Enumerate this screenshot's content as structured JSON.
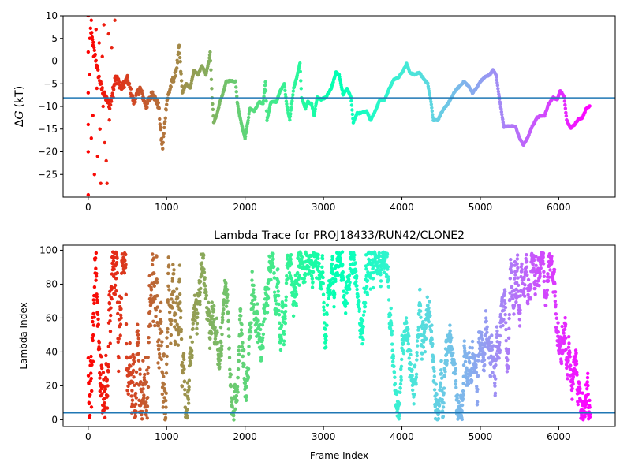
{
  "chart_data": [
    {
      "type": "scatter",
      "title": "",
      "xlabel": "",
      "ylabel": "ΔG (kT)",
      "ylabel_parts": {
        "symbol": "Δ",
        "var": "G",
        "unit": "(kT)"
      },
      "xlim": [
        -320,
        6720
      ],
      "ylim": [
        -30,
        10
      ],
      "xticks": [
        "0",
        "1000",
        "2000",
        "3000",
        "4000",
        "5000",
        "6000"
      ],
      "xtick_values": [
        0,
        1000,
        2000,
        3000,
        4000,
        5000,
        6000
      ],
      "yticks": [
        "−25",
        "−20",
        "−15",
        "−10",
        "−5",
        "0",
        "5",
        "10"
      ],
      "ytick_values": [
        -25,
        -20,
        -15,
        -10,
        -5,
        0,
        5,
        10
      ],
      "hline": -8.1,
      "hline_color": "#1f77b4",
      "colormap": "rainbow_r",
      "x_max": 6400,
      "trace": [
        [
          30,
          7
        ],
        [
          60,
          4
        ],
        [
          90,
          1
        ],
        [
          130,
          -3
        ],
        [
          170,
          -6
        ],
        [
          220,
          -8
        ],
        [
          280,
          -10
        ],
        [
          350,
          -3
        ],
        [
          420,
          -6
        ],
        [
          500,
          -4
        ],
        [
          580,
          -9
        ],
        [
          660,
          -6
        ],
        [
          740,
          -10
        ],
        [
          820,
          -7
        ],
        [
          900,
          -10
        ],
        [
          930,
          -17
        ],
        [
          950,
          -19
        ],
        [
          1000,
          -9
        ],
        [
          1060,
          -5
        ],
        [
          1110,
          -3
        ],
        [
          1140,
          0
        ],
        [
          1160,
          3
        ],
        [
          1200,
          -7
        ],
        [
          1250,
          -5
        ],
        [
          1300,
          -6
        ],
        [
          1350,
          -2
        ],
        [
          1400,
          -3
        ],
        [
          1450,
          -1
        ],
        [
          1500,
          -3
        ],
        [
          1540,
          0
        ],
        [
          1555,
          2
        ],
        [
          1580,
          -8
        ],
        [
          1600,
          -13.5
        ],
        [
          1640,
          -12
        ],
        [
          1680,
          -9
        ],
        [
          1720,
          -7
        ],
        [
          1760,
          -4.5
        ],
        [
          1820,
          -4.3
        ],
        [
          1880,
          -4.5
        ],
        [
          1900,
          -9
        ],
        [
          1930,
          -12
        ],
        [
          1970,
          -15
        ],
        [
          2000,
          -17
        ],
        [
          2040,
          -13
        ],
        [
          2060,
          -10.5
        ],
        [
          2120,
          -11
        ],
        [
          2180,
          -9
        ],
        [
          2230,
          -9.5
        ],
        [
          2260,
          -4.5
        ],
        [
          2280,
          -13
        ],
        [
          2330,
          -9
        ],
        [
          2400,
          -9
        ],
        [
          2450,
          -6.5
        ],
        [
          2500,
          -5
        ],
        [
          2530,
          -9.5
        ],
        [
          2570,
          -13
        ],
        [
          2620,
          -6
        ],
        [
          2660,
          -3.5
        ],
        [
          2700,
          -0.5
        ],
        [
          2720,
          -8
        ],
        [
          2770,
          -10.5
        ],
        [
          2800,
          -9
        ],
        [
          2850,
          -9.5
        ],
        [
          2880,
          -12
        ],
        [
          2920,
          -8
        ],
        [
          2970,
          -8.5
        ],
        [
          3030,
          -8
        ],
        [
          3100,
          -6
        ],
        [
          3160,
          -2.5
        ],
        [
          3200,
          -3
        ],
        [
          3250,
          -7.5
        ],
        [
          3300,
          -6
        ],
        [
          3350,
          -8
        ],
        [
          3380,
          -13.5
        ],
        [
          3430,
          -11.5
        ],
        [
          3480,
          -11.5
        ],
        [
          3550,
          -11
        ],
        [
          3600,
          -13
        ],
        [
          3660,
          -11
        ],
        [
          3720,
          -8.5
        ],
        [
          3780,
          -8.5
        ],
        [
          3840,
          -6
        ],
        [
          3900,
          -4
        ],
        [
          3960,
          -3.5
        ],
        [
          4020,
          -2
        ],
        [
          4060,
          -0.5
        ],
        [
          4100,
          -2.5
        ],
        [
          4160,
          -3
        ],
        [
          4220,
          -2.5
        ],
        [
          4280,
          -4
        ],
        [
          4330,
          -5
        ],
        [
          4370,
          -9
        ],
        [
          4400,
          -13
        ],
        [
          4460,
          -13
        ],
        [
          4500,
          -11.5
        ],
        [
          4560,
          -10
        ],
        [
          4620,
          -8.5
        ],
        [
          4680,
          -6.5
        ],
        [
          4740,
          -5.5
        ],
        [
          4790,
          -4.5
        ],
        [
          4850,
          -5.5
        ],
        [
          4900,
          -7
        ],
        [
          4950,
          -6
        ],
        [
          5000,
          -4.5
        ],
        [
          5060,
          -3.5
        ],
        [
          5120,
          -3
        ],
        [
          5160,
          -2
        ],
        [
          5200,
          -3
        ],
        [
          5250,
          -9
        ],
        [
          5300,
          -14.5
        ],
        [
          5380,
          -14.3
        ],
        [
          5450,
          -14.5
        ],
        [
          5500,
          -17
        ],
        [
          5550,
          -18.5
        ],
        [
          5600,
          -17
        ],
        [
          5660,
          -14.5
        ],
        [
          5720,
          -12.5
        ],
        [
          5780,
          -12
        ],
        [
          5820,
          -12
        ],
        [
          5870,
          -9.5
        ],
        [
          5930,
          -8
        ],
        [
          5980,
          -8.5
        ],
        [
          6020,
          -6.5
        ],
        [
          6070,
          -8
        ],
        [
          6100,
          -13
        ],
        [
          6150,
          -14.8
        ],
        [
          6200,
          -14
        ],
        [
          6250,
          -12.8
        ],
        [
          6300,
          -12.5
        ],
        [
          6350,
          -10.5
        ],
        [
          6400,
          -9.8
        ]
      ],
      "early_scatter": [
        [
          0,
          10
        ],
        [
          0,
          2
        ],
        [
          0,
          -7
        ],
        [
          0,
          -14
        ],
        [
          0,
          -20
        ],
        [
          0,
          -29.5
        ],
        [
          20,
          5
        ],
        [
          20,
          -3
        ],
        [
          40,
          9
        ],
        [
          40,
          -17
        ],
        [
          60,
          -12
        ],
        [
          70,
          1
        ],
        [
          80,
          -25
        ],
        [
          100,
          7
        ],
        [
          110,
          -6
        ],
        [
          120,
          -21
        ],
        [
          140,
          4
        ],
        [
          150,
          -15
        ],
        [
          160,
          -27
        ],
        [
          180,
          1
        ],
        [
          190,
          -10
        ],
        [
          200,
          8
        ],
        [
          210,
          -18
        ],
        [
          230,
          -22
        ],
        [
          240,
          -27
        ],
        [
          260,
          6
        ],
        [
          270,
          -13
        ],
        [
          300,
          3
        ],
        [
          320,
          -8
        ],
        [
          340,
          9
        ],
        [
          360,
          -5
        ]
      ]
    },
    {
      "type": "scatter",
      "title": "Lambda Trace for PROJ18433/RUN42/CLONE2",
      "xlabel": "Frame Index",
      "ylabel": "Lambda Index",
      "xlim": [
        -320,
        6720
      ],
      "ylim": [
        -4,
        103
      ],
      "xticks": [
        "0",
        "1000",
        "2000",
        "3000",
        "4000",
        "5000",
        "6000"
      ],
      "xtick_values": [
        0,
        1000,
        2000,
        3000,
        4000,
        5000,
        6000
      ],
      "yticks": [
        "0",
        "20",
        "40",
        "60",
        "80",
        "100"
      ],
      "ytick_values": [
        0,
        20,
        40,
        60,
        80,
        100
      ],
      "hline": 4,
      "hline_color": "#1f77b4",
      "colormap": "rainbow_r",
      "x_max": 6400,
      "point_count": 2600,
      "lambda_range": [
        0,
        99
      ]
    }
  ]
}
